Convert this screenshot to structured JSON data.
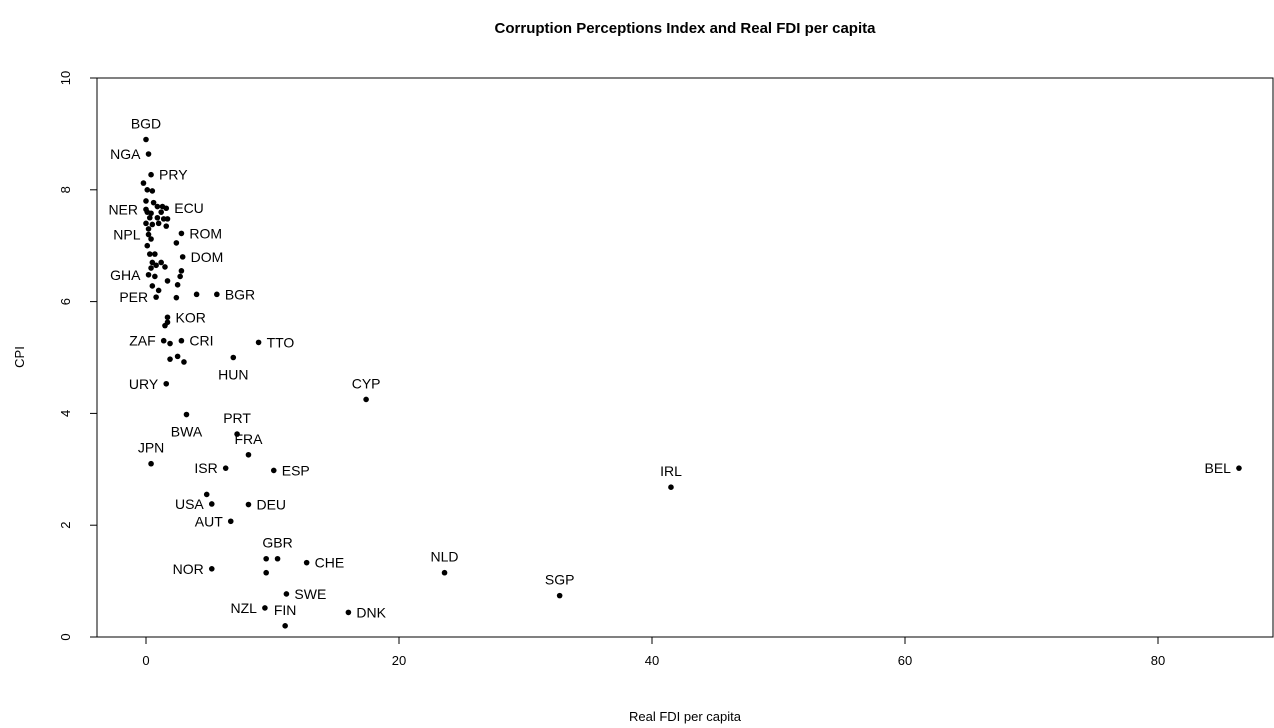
{
  "chart_data": {
    "type": "scatter",
    "title": "Corruption Perceptions Index and Real FDI per capita",
    "xlabel": "Real FDI per capita",
    "ylabel": "CPI",
    "xlim": [
      -4,
      89
    ],
    "ylim": [
      0,
      10
    ],
    "x_ticks": [
      0,
      20,
      40,
      60,
      80
    ],
    "y_ticks": [
      0,
      2,
      4,
      6,
      8,
      10
    ],
    "grid": false,
    "legend": "none",
    "point_color": "#000000",
    "labeled_points": [
      {
        "label": "BGD",
        "x": 0.0,
        "y": 8.9,
        "pos": "above"
      },
      {
        "label": "NGA",
        "x": 0.2,
        "y": 8.64,
        "pos": "left"
      },
      {
        "label": "PRY",
        "x": 0.4,
        "y": 8.27,
        "pos": "right"
      },
      {
        "label": "NER",
        "x": 0.0,
        "y": 7.65,
        "pos": "left"
      },
      {
        "label": "ECU",
        "x": 1.6,
        "y": 7.67,
        "pos": "right"
      },
      {
        "label": "NPL",
        "x": 0.2,
        "y": 7.2,
        "pos": "left"
      },
      {
        "label": "ROM",
        "x": 2.8,
        "y": 7.22,
        "pos": "right"
      },
      {
        "label": "DOM",
        "x": 2.9,
        "y": 6.8,
        "pos": "right"
      },
      {
        "label": "GHA",
        "x": 0.2,
        "y": 6.48,
        "pos": "left"
      },
      {
        "label": "PER",
        "x": 0.8,
        "y": 6.08,
        "pos": "left"
      },
      {
        "label": "BGR",
        "x": 5.6,
        "y": 6.13,
        "pos": "right"
      },
      {
        "label": "KOR",
        "x": 1.7,
        "y": 5.72,
        "pos": "right"
      },
      {
        "label": "ZAF",
        "x": 1.4,
        "y": 5.3,
        "pos": "left"
      },
      {
        "label": "CRI",
        "x": 2.8,
        "y": 5.3,
        "pos": "right"
      },
      {
        "label": "TTO",
        "x": 8.9,
        "y": 5.27,
        "pos": "right"
      },
      {
        "label": "HUN",
        "x": 6.9,
        "y": 5.0,
        "pos": "below"
      },
      {
        "label": "URY",
        "x": 1.6,
        "y": 4.53,
        "pos": "left"
      },
      {
        "label": "CYP",
        "x": 17.4,
        "y": 4.25,
        "pos": "above"
      },
      {
        "label": "BWA",
        "x": 3.2,
        "y": 3.98,
        "pos": "below"
      },
      {
        "label": "PRT",
        "x": 7.2,
        "y": 3.63,
        "pos": "above"
      },
      {
        "label": "FRA",
        "x": 8.1,
        "y": 3.26,
        "pos": "above"
      },
      {
        "label": "JPN",
        "x": 0.4,
        "y": 3.1,
        "pos": "above"
      },
      {
        "label": "ISR",
        "x": 6.3,
        "y": 3.02,
        "pos": "left"
      },
      {
        "label": "ESP",
        "x": 10.1,
        "y": 2.98,
        "pos": "right"
      },
      {
        "label": "IRL",
        "x": 41.5,
        "y": 2.68,
        "pos": "above"
      },
      {
        "label": "BEL",
        "x": 86.4,
        "y": 3.02,
        "pos": "left"
      },
      {
        "label": "USA",
        "x": 5.2,
        "y": 2.38,
        "pos": "left"
      },
      {
        "label": "DEU",
        "x": 8.1,
        "y": 2.37,
        "pos": "right"
      },
      {
        "label": "AUT",
        "x": 6.7,
        "y": 2.07,
        "pos": "left"
      },
      {
        "label": "GBR",
        "x": 10.4,
        "y": 1.4,
        "pos": "above"
      },
      {
        "label": "CHE",
        "x": 12.7,
        "y": 1.33,
        "pos": "right"
      },
      {
        "label": "NLD",
        "x": 23.6,
        "y": 1.15,
        "pos": "above"
      },
      {
        "label": "NOR",
        "x": 5.2,
        "y": 1.22,
        "pos": "left"
      },
      {
        "label": "SGP",
        "x": 32.7,
        "y": 0.74,
        "pos": "above"
      },
      {
        "label": "SWE",
        "x": 11.1,
        "y": 0.77,
        "pos": "right"
      },
      {
        "label": "NZL",
        "x": 9.4,
        "y": 0.52,
        "pos": "left"
      },
      {
        "label": "FIN",
        "x": 11.0,
        "y": 0.2,
        "pos": "above"
      },
      {
        "label": "DNK",
        "x": 16.0,
        "y": 0.44,
        "pos": "right"
      }
    ],
    "unlabeled_points": [
      {
        "x": -0.2,
        "y": 8.12
      },
      {
        "x": 0.1,
        "y": 8.0
      },
      {
        "x": 0.5,
        "y": 7.98
      },
      {
        "x": 0.0,
        "y": 7.8
      },
      {
        "x": 0.6,
        "y": 7.77
      },
      {
        "x": 0.9,
        "y": 7.7
      },
      {
        "x": 1.3,
        "y": 7.7
      },
      {
        "x": 0.1,
        "y": 7.6
      },
      {
        "x": 0.4,
        "y": 7.58
      },
      {
        "x": 1.2,
        "y": 7.6
      },
      {
        "x": 0.3,
        "y": 7.5
      },
      {
        "x": 0.9,
        "y": 7.5
      },
      {
        "x": 1.4,
        "y": 7.48
      },
      {
        "x": 1.7,
        "y": 7.48
      },
      {
        "x": 0.0,
        "y": 7.4
      },
      {
        "x": 0.5,
        "y": 7.38
      },
      {
        "x": 1.0,
        "y": 7.4
      },
      {
        "x": 1.6,
        "y": 7.35
      },
      {
        "x": 0.2,
        "y": 7.3
      },
      {
        "x": 0.4,
        "y": 7.12
      },
      {
        "x": 2.4,
        "y": 7.05
      },
      {
        "x": 0.1,
        "y": 7.0
      },
      {
        "x": 0.3,
        "y": 6.85
      },
      {
        "x": 0.7,
        "y": 6.85
      },
      {
        "x": 0.5,
        "y": 6.7
      },
      {
        "x": 0.8,
        "y": 6.65
      },
      {
        "x": 1.2,
        "y": 6.7
      },
      {
        "x": 1.5,
        "y": 6.62
      },
      {
        "x": 0.4,
        "y": 6.6
      },
      {
        "x": 2.8,
        "y": 6.55
      },
      {
        "x": 2.7,
        "y": 6.45
      },
      {
        "x": 0.7,
        "y": 6.45
      },
      {
        "x": 1.7,
        "y": 6.37
      },
      {
        "x": 2.5,
        "y": 6.3
      },
      {
        "x": 0.5,
        "y": 6.28
      },
      {
        "x": 1.0,
        "y": 6.2
      },
      {
        "x": 4.0,
        "y": 6.13
      },
      {
        "x": 2.4,
        "y": 6.07
      },
      {
        "x": 1.7,
        "y": 5.63
      },
      {
        "x": 1.5,
        "y": 5.57
      },
      {
        "x": 1.9,
        "y": 5.25
      },
      {
        "x": 2.5,
        "y": 5.02
      },
      {
        "x": 1.9,
        "y": 4.97
      },
      {
        "x": 3.0,
        "y": 4.92
      },
      {
        "x": 4.8,
        "y": 2.55
      },
      {
        "x": 9.5,
        "y": 1.4
      },
      {
        "x": 9.5,
        "y": 1.15
      }
    ]
  }
}
